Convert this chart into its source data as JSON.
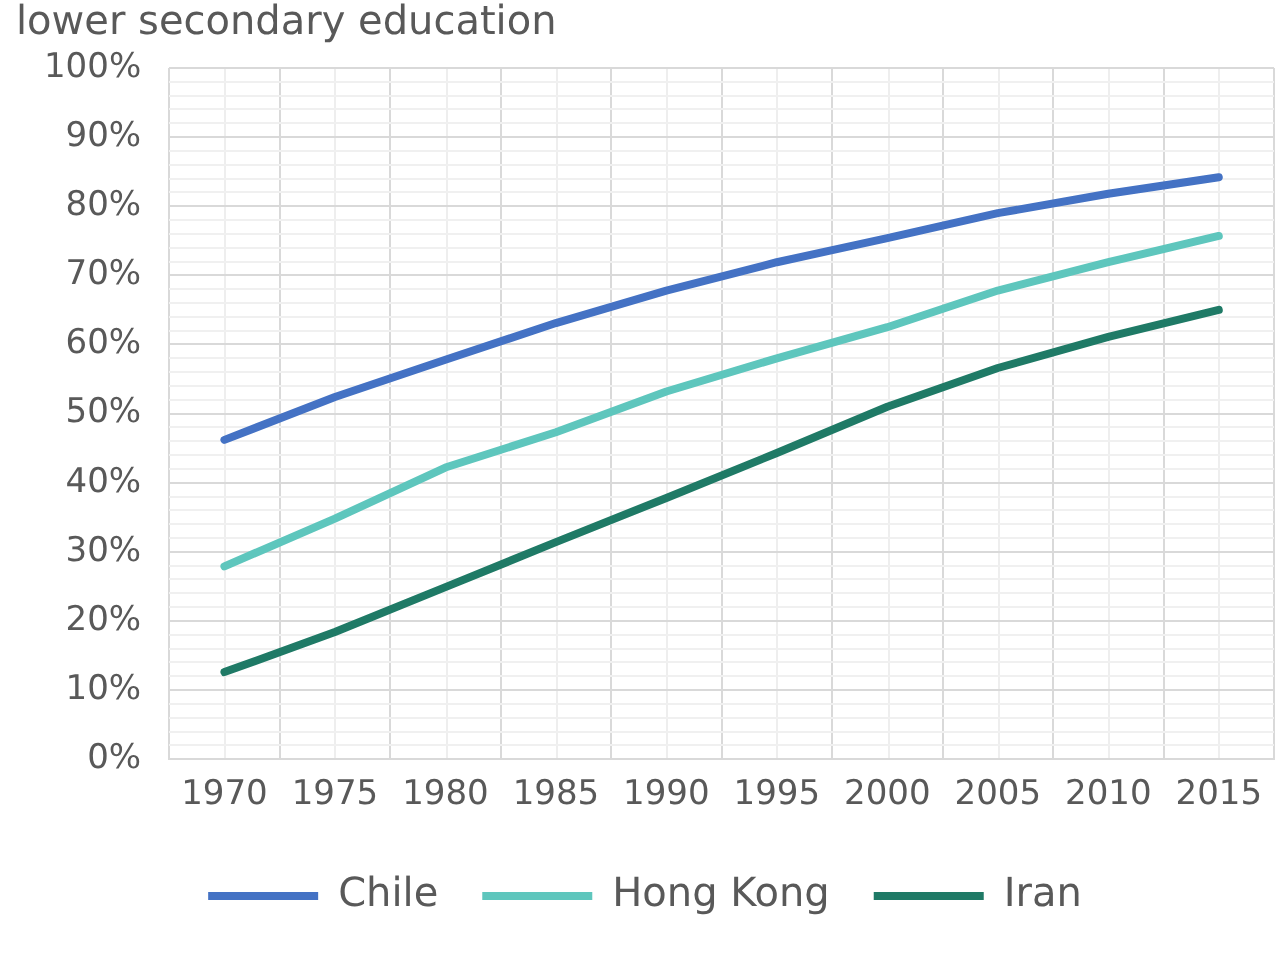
{
  "chart_data": {
    "type": "line",
    "title": "lower secondary education",
    "categories": [
      "1970",
      "1975",
      "1980",
      "1985",
      "1990",
      "1995",
      "2000",
      "2005",
      "2010",
      "2015"
    ],
    "series": [
      {
        "name": "Chile",
        "color": "#4472c4",
        "values": [
          46.2,
          52.4,
          57.8,
          63.1,
          67.8,
          71.9,
          75.4,
          79.0,
          81.8,
          84.2
        ]
      },
      {
        "name": "Hong Kong",
        "color": "#5ec6bd",
        "values": [
          27.9,
          34.8,
          42.2,
          47.3,
          53.2,
          58.0,
          62.5,
          67.8,
          71.9,
          75.7
        ]
      },
      {
        "name": "Iran",
        "color": "#1f7a66",
        "values": [
          12.6,
          18.4,
          24.9,
          31.4,
          37.8,
          44.3,
          51.0,
          56.6,
          61.1,
          65.0
        ]
      }
    ],
    "ylim": [
      0,
      100
    ],
    "yticks": [
      {
        "value": 0,
        "label": "0%"
      },
      {
        "value": 2,
        "label": null
      },
      {
        "value": 4,
        "label": null
      },
      {
        "value": 6,
        "label": null
      },
      {
        "value": 8,
        "label": null
      },
      {
        "value": 10,
        "label": "10%"
      },
      {
        "value": 12,
        "label": null
      },
      {
        "value": 14,
        "label": null
      },
      {
        "value": 16,
        "label": null
      },
      {
        "value": 18,
        "label": null
      },
      {
        "value": 20,
        "label": "20%"
      },
      {
        "value": 22,
        "label": null
      },
      {
        "value": 24,
        "label": null
      },
      {
        "value": 26,
        "label": null
      },
      {
        "value": 28,
        "label": null
      },
      {
        "value": 30,
        "label": "30%"
      },
      {
        "value": 32,
        "label": null
      },
      {
        "value": 34,
        "label": null
      },
      {
        "value": 36,
        "label": null
      },
      {
        "value": 38,
        "label": null
      },
      {
        "value": 40,
        "label": "40%"
      },
      {
        "value": 42,
        "label": null
      },
      {
        "value": 44,
        "label": null
      },
      {
        "value": 46,
        "label": null
      },
      {
        "value": 48,
        "label": null
      },
      {
        "value": 50,
        "label": "50%"
      },
      {
        "value": 52,
        "label": null
      },
      {
        "value": 54,
        "label": null
      },
      {
        "value": 56,
        "label": null
      },
      {
        "value": 58,
        "label": null
      },
      {
        "value": 60,
        "label": "60%"
      },
      {
        "value": 62,
        "label": null
      },
      {
        "value": 64,
        "label": null
      },
      {
        "value": 66,
        "label": null
      },
      {
        "value": 68,
        "label": null
      },
      {
        "value": 70,
        "label": "70%"
      },
      {
        "value": 72,
        "label": null
      },
      {
        "value": 74,
        "label": null
      },
      {
        "value": 76,
        "label": null
      },
      {
        "value": 78,
        "label": null
      },
      {
        "value": 80,
        "label": "80%"
      },
      {
        "value": 82,
        "label": null
      },
      {
        "value": 84,
        "label": null
      },
      {
        "value": 86,
        "label": null
      },
      {
        "value": 88,
        "label": null
      },
      {
        "value": 90,
        "label": "90%"
      },
      {
        "value": 92,
        "label": null
      },
      {
        "value": 94,
        "label": null
      },
      {
        "value": 96,
        "label": null
      },
      {
        "value": 98,
        "label": null
      },
      {
        "value": 100,
        "label": "100%"
      }
    ],
    "grid": true,
    "legend": "bottom",
    "marker": "none",
    "line_style": "solid"
  }
}
